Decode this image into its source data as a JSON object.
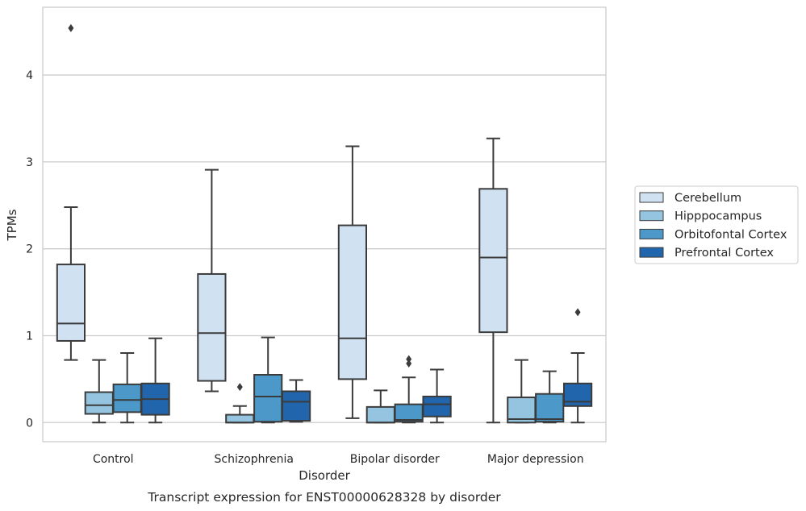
{
  "chart_data": {
    "type": "box",
    "caption": "Transcript expression for ENST00000628328 by disorder",
    "xlabel": "Disorder",
    "ylabel": "TPMs",
    "ylim": [
      -0.22,
      4.78
    ],
    "yticks": [
      0,
      1,
      2,
      3,
      4
    ],
    "grid": "horizontal",
    "legend_position": "right",
    "categories": [
      "Control",
      "Schizophrenia",
      "Bipolar disorder",
      "Major depression"
    ],
    "series": [
      {
        "name": "Cerebellum",
        "color": "#d0e1f2",
        "boxes": [
          {
            "whisker_low": 0.72,
            "q1": 0.94,
            "median": 1.14,
            "q3": 1.82,
            "whisker_high": 2.48,
            "outliers": [
              4.54
            ]
          },
          {
            "whisker_low": 0.36,
            "q1": 0.48,
            "median": 1.03,
            "q3": 1.71,
            "whisker_high": 2.91,
            "outliers": []
          },
          {
            "whisker_low": 0.05,
            "q1": 0.5,
            "median": 0.97,
            "q3": 2.27,
            "whisker_high": 3.18,
            "outliers": []
          },
          {
            "whisker_low": 0.0,
            "q1": 1.04,
            "median": 1.9,
            "q3": 2.69,
            "whisker_high": 3.27,
            "outliers": []
          }
        ]
      },
      {
        "name": "Hipppocampus",
        "color": "#94c4df",
        "boxes": [
          {
            "whisker_low": 0.0,
            "q1": 0.1,
            "median": 0.2,
            "q3": 0.35,
            "whisker_high": 0.72,
            "outliers": []
          },
          {
            "whisker_low": 0.0,
            "q1": 0.0,
            "median": 0.0,
            "q3": 0.09,
            "whisker_high": 0.19,
            "outliers": [
              0.41
            ]
          },
          {
            "whisker_low": 0.0,
            "q1": 0.0,
            "median": 0.0,
            "q3": 0.18,
            "whisker_high": 0.37,
            "outliers": []
          },
          {
            "whisker_low": 0.0,
            "q1": 0.0,
            "median": 0.04,
            "q3": 0.29,
            "whisker_high": 0.72,
            "outliers": []
          }
        ]
      },
      {
        "name": "Orbitofontal Cortex",
        "color": "#4b98c9",
        "boxes": [
          {
            "whisker_low": 0.0,
            "q1": 0.12,
            "median": 0.26,
            "q3": 0.44,
            "whisker_high": 0.8,
            "outliers": []
          },
          {
            "whisker_low": 0.0,
            "q1": 0.01,
            "median": 0.3,
            "q3": 0.55,
            "whisker_high": 0.98,
            "outliers": []
          },
          {
            "whisker_low": 0.0,
            "q1": 0.01,
            "median": 0.03,
            "q3": 0.21,
            "whisker_high": 0.52,
            "outliers": [
              0.68,
              0.73
            ]
          },
          {
            "whisker_low": 0.0,
            "q1": 0.01,
            "median": 0.04,
            "q3": 0.33,
            "whisker_high": 0.59,
            "outliers": []
          }
        ]
      },
      {
        "name": "Prefrontal Cortex",
        "color": "#2165ac",
        "boxes": [
          {
            "whisker_low": 0.0,
            "q1": 0.09,
            "median": 0.27,
            "q3": 0.45,
            "whisker_high": 0.97,
            "outliers": []
          },
          {
            "whisker_low": 0.01,
            "q1": 0.02,
            "median": 0.24,
            "q3": 0.36,
            "whisker_high": 0.49,
            "outliers": []
          },
          {
            "whisker_low": 0.0,
            "q1": 0.07,
            "median": 0.21,
            "q3": 0.3,
            "whisker_high": 0.61,
            "outliers": []
          },
          {
            "whisker_low": 0.0,
            "q1": 0.19,
            "median": 0.24,
            "q3": 0.45,
            "whisker_high": 0.8,
            "outliers": [
              1.27
            ]
          }
        ]
      }
    ]
  },
  "style": {
    "line_color": "#3b3b3b",
    "grid_color": "#cccccc",
    "frame_color": "#cccccc",
    "background": "#ffffff"
  }
}
